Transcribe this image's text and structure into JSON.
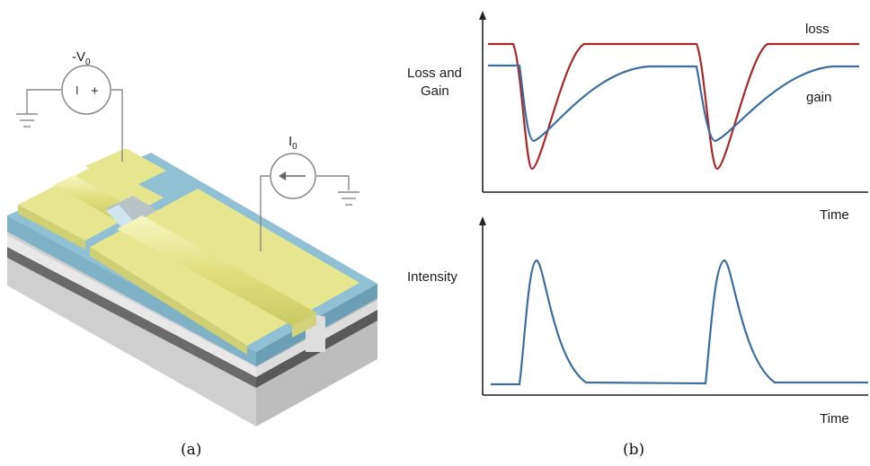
{
  "panel_a": {
    "caption": "(a)",
    "voltage_label": "-V",
    "voltage_subscript": "0",
    "current_label": "I",
    "current_subscript": "0",
    "minus_sign": "I",
    "plus_sign": "+"
  },
  "panel_b": {
    "caption": "(b)",
    "top_ylabel_line1": "Loss and",
    "top_ylabel_line2": "Gain",
    "top_xlabel": "Time",
    "bottom_ylabel": "Intensity",
    "bottom_xlabel": "Time",
    "series": [
      {
        "name": "loss",
        "color": "#a8282a"
      },
      {
        "name": "gain",
        "color": "#3e6d9c"
      }
    ],
    "intensity_color": "#3e6d9c"
  },
  "colors": {
    "gold": "#e6e68e",
    "blue_layer": "#7fb1c7",
    "gray_dark": "#6a6a6a",
    "gray_light": "#cfcfcf"
  }
}
